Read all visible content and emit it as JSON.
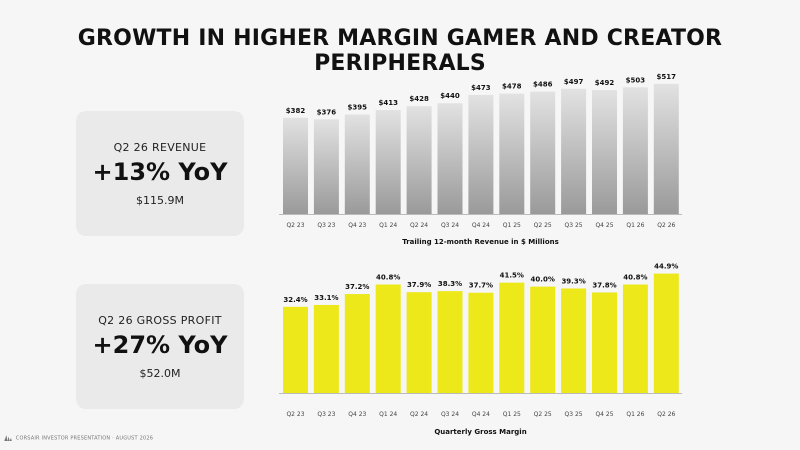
{
  "title": "GROWTH IN HIGHER MARGIN GAMER AND CREATOR PERIPHERALS",
  "revenue_card": {
    "label": "Q2 26 REVENUE",
    "value": "+13% YoY",
    "sub": "$115.9M"
  },
  "gp_card": {
    "label": "Q2 26 GROSS PROFIT",
    "value": "+27% YoY",
    "sub": "$52.0M"
  },
  "footer": {
    "text": "CORSAIR INVESTOR PRESENTATION · AUGUST 2026",
    "logo_icon": "corsair-sails-icon"
  },
  "colors": {
    "revenue_bar_top": "#e2e2e2",
    "revenue_bar_bottom": "#9a9a9a",
    "margin_bar": "#ece81a"
  },
  "chart_data": [
    {
      "type": "bar",
      "title": "",
      "xlabel": "Trailing 12-month Revenue in $ Millions",
      "ylabel": "",
      "categories": [
        "Q2 23",
        "Q3 23",
        "Q4 23",
        "Q1 24",
        "Q2 24",
        "Q3 24",
        "Q4 24",
        "Q1 25",
        "Q2 25",
        "Q3 25",
        "Q4 25",
        "Q1 26",
        "Q2 26"
      ],
      "values": [
        382,
        376,
        395,
        413,
        428,
        440,
        473,
        478,
        486,
        497,
        492,
        503,
        517
      ],
      "data_labels": [
        "$382",
        "$376",
        "$395",
        "$413",
        "$428",
        "$440",
        "$473",
        "$478",
        "$486",
        "$497",
        "$492",
        "$503",
        "$517"
      ],
      "ylim": [
        0,
        540
      ]
    },
    {
      "type": "bar",
      "title": "",
      "xlabel": "Quarterly Gross Margin",
      "ylabel": "",
      "categories": [
        "Q2 23",
        "Q3 23",
        "Q4 23",
        "Q1 24",
        "Q2 24",
        "Q3 24",
        "Q4 24",
        "Q1 25",
        "Q2 25",
        "Q3 25",
        "Q4 25",
        "Q1 26",
        "Q2 26"
      ],
      "values": [
        32.4,
        33.1,
        37.2,
        40.8,
        37.9,
        38.3,
        37.7,
        41.5,
        40.0,
        39.3,
        37.8,
        40.8,
        44.9
      ],
      "data_labels": [
        "32.4%",
        "33.1%",
        "37.2%",
        "40.8%",
        "37.9%",
        "38.3%",
        "37.7%",
        "41.5%",
        "40.0%",
        "39.3%",
        "37.8%",
        "40.8%",
        "44.9%"
      ],
      "ylim": [
        0,
        47
      ]
    }
  ]
}
